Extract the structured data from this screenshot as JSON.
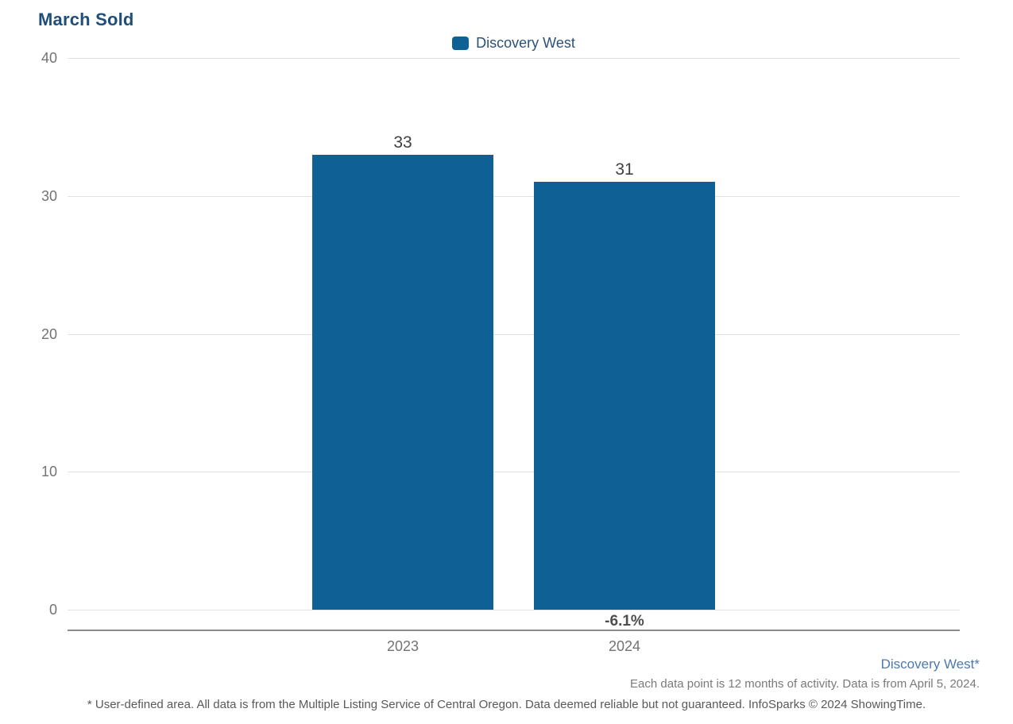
{
  "page": {
    "title": "March Sold"
  },
  "chart_data": {
    "type": "bar",
    "title": "March Sold",
    "categories": [
      "2023",
      "2024"
    ],
    "series": [
      {
        "name": "Discovery West",
        "values": [
          33,
          31
        ],
        "color": "#0F6195"
      }
    ],
    "value_labels": [
      "33",
      "31"
    ],
    "change_labels": [
      "",
      "-6.1%"
    ],
    "ylim": [
      0,
      40
    ],
    "yticks": [
      40,
      30,
      20,
      10,
      0
    ],
    "grid": true,
    "legend_position": "top-center",
    "xlabel": "",
    "ylabel": ""
  },
  "legend": {
    "items": [
      {
        "label": "Discovery West",
        "color": "#0F6195"
      }
    ]
  },
  "footer": {
    "series_note": "Discovery West*",
    "data_note": "Each data point is 12 months of activity. Data is from April 5, 2024.",
    "disclaimer": "* User-defined area. All data is from the Multiple Listing Service of Central Oregon. Data deemed reliable but not guaranteed. InfoSparks © 2024 ShowingTime."
  },
  "colors": {
    "bar": "#0F6195",
    "title": "#1F4E79",
    "legend_text": "#2B5178",
    "axis_label": "#737373",
    "value_label": "#404040",
    "change_label": "#4D4D4D",
    "gridline": "#E2E2E2",
    "axis_line": "#8C8C8C",
    "footer_series": "#4D79AE",
    "footer_note": "#7A7A7A",
    "disclaimer": "#595959"
  }
}
